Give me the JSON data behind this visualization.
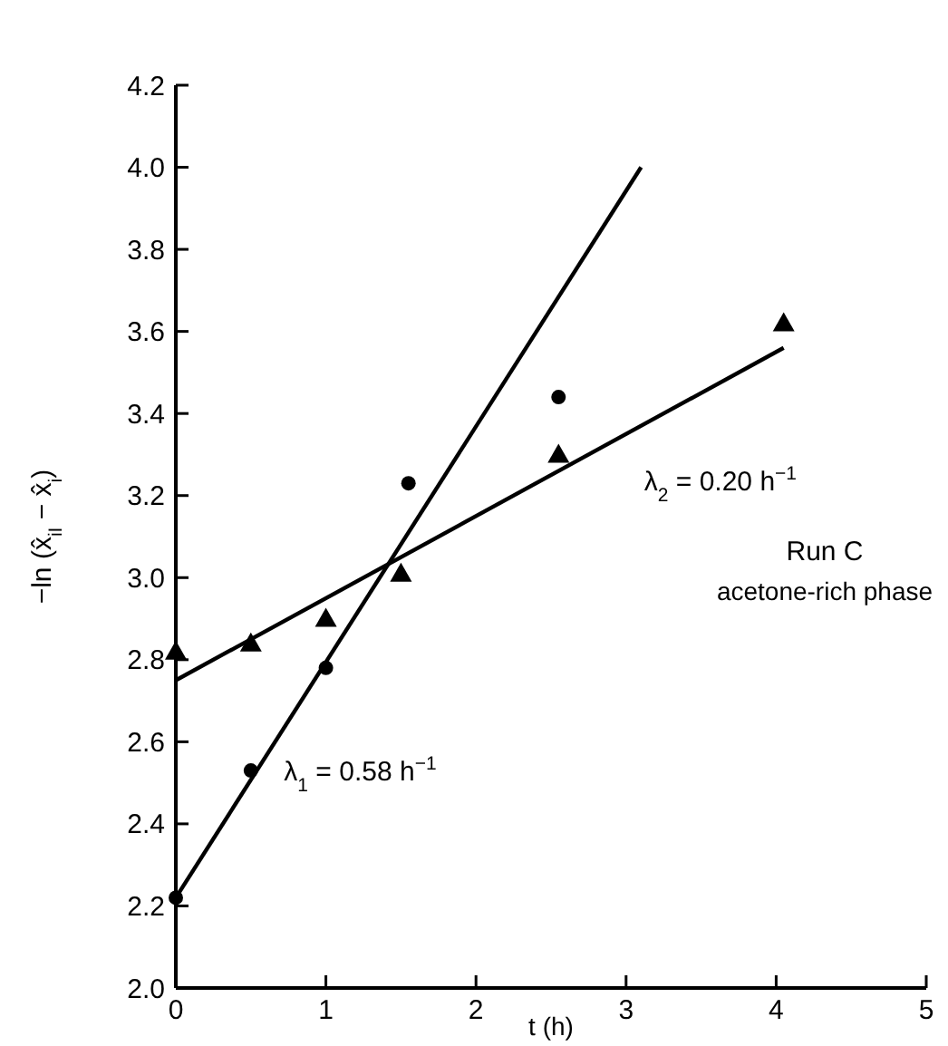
{
  "chart_data": {
    "type": "scatter",
    "xlabel": "t (h)",
    "ylabel": "−ln (x̂$_{iI}$ − x̂$_{i}$)",
    "xlim": [
      0,
      5
    ],
    "ylim": [
      2.0,
      4.2
    ],
    "xticks": [
      0,
      1,
      2,
      3,
      4,
      5
    ],
    "yticks": [
      {
        "value": 2.0,
        "label": "2.0"
      },
      {
        "value": 2.2,
        "label": "2.2"
      },
      {
        "value": 2.4,
        "label": "2.4"
      },
      {
        "value": 2.6,
        "label": "2.6"
      },
      {
        "value": 2.8,
        "label": "2.8"
      },
      {
        "value": 3.0,
        "label": "3.0"
      },
      {
        "value": 3.2,
        "label": "3.2"
      },
      {
        "value": 3.4,
        "label": "3.4"
      },
      {
        "value": 3.6,
        "label": "3.6"
      },
      {
        "value": 3.8,
        "label": "3.8"
      },
      {
        "value": 4.0,
        "label": "4.0"
      },
      {
        "value": 4.2,
        "label": "4.2"
      }
    ],
    "grid": false,
    "series": [
      {
        "marker": "circle",
        "color": "#000000",
        "x": [
          0,
          0.5,
          1,
          1.55,
          2.55
        ],
        "values": [
          2.22,
          2.53,
          2.78,
          3.23,
          3.44
        ]
      },
      {
        "marker": "triangle",
        "color": "#000000",
        "x": [
          0,
          0.5,
          1,
          1.5,
          2.55,
          4.05
        ],
        "values": [
          2.82,
          2.84,
          2.9,
          3.01,
          3.3,
          3.62
        ]
      },
      {
        "type": "line",
        "marker": "none",
        "line_style": "solid",
        "color": "#000000",
        "x": [
          0,
          3.1
        ],
        "values": [
          2.22,
          4.0
        ]
      },
      {
        "type": "line",
        "marker": "none",
        "line_style": "solid",
        "color": "#000000",
        "x": [
          0,
          4.05
        ],
        "values": [
          2.75,
          3.56
        ]
      }
    ],
    "annotations": [
      {
        "text": "λ$_{1}$ = 0.58 h$^{−1}$",
        "x": 0.6,
        "y": 2.53
      },
      {
        "text": "λ$_{2}$ = 0.20 h$^{−1}$",
        "x": 3.0,
        "y": 3.35
      },
      "Run C",
      "acetone-rich phase"
    ]
  }
}
